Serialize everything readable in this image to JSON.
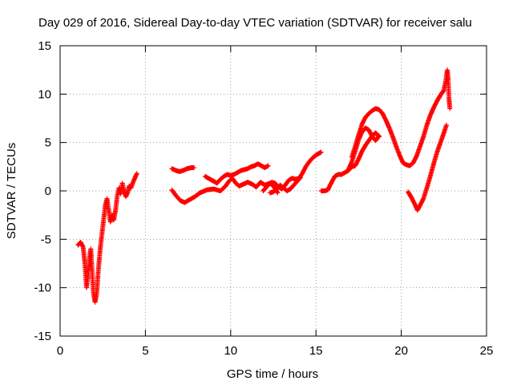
{
  "chart_data": {
    "type": "scatter",
    "title": "Day 029 of 2016, Sidereal Day-to-day VTEC variation (SDTVAR) for receiver salu",
    "xlabel": "GPS time / hours",
    "ylabel": "SDTVAR / TECUs",
    "xlim": [
      0,
      25
    ],
    "ylim": [
      -15,
      15
    ],
    "xticks": [
      0,
      5,
      10,
      15,
      20,
      25
    ],
    "yticks": [
      -15,
      -10,
      -5,
      0,
      5,
      10,
      15
    ],
    "x_tick_labels": [
      "0",
      "5",
      "10",
      "15",
      "20",
      "25"
    ],
    "y_tick_labels": [
      "-15",
      "-10",
      "-5",
      "0",
      "5",
      "10",
      "15"
    ],
    "grid": true,
    "marker": "+",
    "series_color": "#ff0000",
    "segments": [
      {
        "name": "arc-1",
        "points": [
          [
            1.05,
            -5.6
          ],
          [
            1.2,
            -5.3
          ],
          [
            1.35,
            -5.8
          ],
          [
            1.45,
            -7.5
          ],
          [
            1.55,
            -10.0
          ],
          [
            1.65,
            -8.5
          ],
          [
            1.75,
            -6.5
          ],
          [
            1.8,
            -6.0
          ],
          [
            1.85,
            -7.5
          ],
          [
            1.95,
            -10.5
          ],
          [
            2.05,
            -11.5
          ],
          [
            2.15,
            -10.5
          ],
          [
            2.25,
            -8.0
          ],
          [
            2.35,
            -6.0
          ],
          [
            2.45,
            -4.5
          ],
          [
            2.55,
            -3.0
          ],
          [
            2.65,
            -1.5
          ],
          [
            2.75,
            -0.8
          ],
          [
            2.85,
            -2.0
          ],
          [
            2.95,
            -3.2
          ],
          [
            3.05,
            -2.5
          ],
          [
            3.15,
            -3.0
          ],
          [
            3.25,
            -2.0
          ],
          [
            3.35,
            -0.5
          ],
          [
            3.45,
            0.3
          ],
          [
            3.55,
            -0.3
          ],
          [
            3.65,
            0.8
          ],
          [
            3.75,
            0.0
          ],
          [
            3.85,
            -0.6
          ],
          [
            3.95,
            -0.2
          ],
          [
            4.05,
            0.5
          ],
          [
            4.15,
            0.3
          ],
          [
            4.3,
            1.0
          ],
          [
            4.5,
            1.8
          ]
        ]
      },
      {
        "name": "arc-2",
        "points": [
          [
            6.55,
            2.3
          ],
          [
            6.8,
            2.1
          ],
          [
            7.0,
            2.0
          ],
          [
            7.2,
            2.1
          ],
          [
            7.45,
            2.3
          ],
          [
            7.7,
            2.4
          ],
          [
            7.85,
            2.4
          ]
        ]
      },
      {
        "name": "arc-3",
        "points": [
          [
            6.55,
            0.1
          ],
          [
            6.8,
            -0.5
          ],
          [
            7.05,
            -1.0
          ],
          [
            7.3,
            -1.2
          ],
          [
            7.6,
            -0.9
          ],
          [
            7.9,
            -0.6
          ],
          [
            8.2,
            -0.2
          ],
          [
            8.6,
            0.1
          ],
          [
            9.0,
            0.2
          ],
          [
            9.4,
            0.0
          ],
          [
            9.7,
            0.5
          ],
          [
            9.9,
            1.0
          ],
          [
            10.1,
            1.3
          ],
          [
            10.3,
            0.8
          ],
          [
            10.5,
            0.5
          ],
          [
            10.75,
            0.7
          ],
          [
            11.0,
            0.9
          ],
          [
            11.25,
            0.7
          ],
          [
            11.5,
            0.4
          ],
          [
            11.75,
            0.9
          ],
          [
            12.0,
            0.6
          ],
          [
            12.3,
            0.8
          ],
          [
            12.5,
            0.5
          ],
          [
            12.65,
            0.1
          ],
          [
            12.75,
            -0.2
          ]
        ]
      },
      {
        "name": "arc-4",
        "points": [
          [
            8.5,
            1.5
          ],
          [
            8.8,
            1.2
          ],
          [
            9.0,
            1.0
          ],
          [
            9.2,
            0.8
          ],
          [
            9.4,
            1.2
          ],
          [
            9.6,
            1.5
          ],
          [
            9.8,
            1.7
          ],
          [
            10.0,
            1.6
          ],
          [
            10.2,
            1.7
          ],
          [
            10.4,
            1.9
          ],
          [
            10.6,
            2.1
          ],
          [
            10.8,
            2.2
          ],
          [
            11.0,
            2.3
          ],
          [
            11.2,
            2.5
          ],
          [
            11.4,
            2.6
          ],
          [
            11.6,
            2.8
          ],
          [
            11.8,
            2.6
          ],
          [
            12.0,
            2.4
          ],
          [
            12.2,
            2.6
          ]
        ]
      },
      {
        "name": "arc-5",
        "points": [
          [
            11.9,
            0.0
          ],
          [
            12.0,
            0.2
          ],
          [
            12.2,
            0.6
          ],
          [
            12.4,
            0.9
          ],
          [
            12.6,
            0.8
          ],
          [
            12.8,
            0.4
          ],
          [
            13.0,
            0.2
          ],
          [
            13.2,
            0.6
          ],
          [
            13.4,
            1.1
          ],
          [
            13.6,
            1.3
          ],
          [
            13.8,
            1.2
          ],
          [
            14.0,
            1.3
          ],
          [
            14.2,
            1.8
          ],
          [
            14.4,
            2.5
          ],
          [
            14.6,
            3.0
          ],
          [
            14.8,
            3.4
          ],
          [
            15.0,
            3.7
          ],
          [
            15.2,
            3.9
          ],
          [
            15.3,
            4.0
          ]
        ]
      },
      {
        "name": "arc-6",
        "points": [
          [
            12.3,
            -0.2
          ],
          [
            12.5,
            -0.1
          ],
          [
            12.7,
            0.2
          ],
          [
            12.9,
            0.6
          ],
          [
            13.1,
            0.3
          ],
          [
            13.3,
            0.0
          ],
          [
            13.5,
            0.2
          ],
          [
            13.7,
            0.6
          ],
          [
            13.9,
            1.0
          ],
          [
            14.1,
            1.4
          ]
        ]
      },
      {
        "name": "arc-7",
        "points": [
          [
            15.3,
            0.0
          ],
          [
            15.5,
            0.0
          ],
          [
            15.7,
            0.1
          ],
          [
            15.8,
            0.5
          ],
          [
            15.95,
            1.0
          ],
          [
            16.1,
            1.5
          ],
          [
            16.3,
            1.7
          ],
          [
            16.5,
            1.7
          ],
          [
            16.7,
            1.9
          ],
          [
            16.9,
            2.1
          ],
          [
            17.1,
            2.5
          ],
          [
            17.3,
            2.6
          ],
          [
            17.5,
            3.3
          ],
          [
            17.7,
            4.1
          ],
          [
            17.9,
            4.7
          ],
          [
            18.1,
            5.2
          ],
          [
            18.3,
            5.7
          ],
          [
            18.5,
            6.0
          ],
          [
            18.7,
            5.6
          ]
        ]
      },
      {
        "name": "arc-8",
        "points": [
          [
            16.9,
            2.2
          ],
          [
            17.1,
            3.0
          ],
          [
            17.3,
            4.1
          ],
          [
            17.5,
            5.3
          ],
          [
            17.7,
            6.1
          ],
          [
            17.9,
            6.5
          ],
          [
            18.1,
            6.3
          ],
          [
            18.3,
            5.6
          ],
          [
            18.5,
            5.2
          ],
          [
            18.7,
            5.7
          ]
        ]
      },
      {
        "name": "arc-9",
        "points": [
          [
            17.1,
            3.5
          ],
          [
            17.3,
            4.6
          ],
          [
            17.5,
            5.8
          ],
          [
            17.7,
            6.9
          ],
          [
            17.9,
            7.6
          ],
          [
            18.1,
            8.0
          ],
          [
            18.3,
            8.3
          ],
          [
            18.5,
            8.5
          ],
          [
            18.7,
            8.4
          ],
          [
            18.9,
            8.0
          ],
          [
            19.1,
            7.3
          ],
          [
            19.3,
            6.5
          ],
          [
            19.5,
            5.6
          ],
          [
            19.7,
            4.6
          ],
          [
            19.9,
            3.7
          ],
          [
            20.1,
            2.9
          ],
          [
            20.3,
            2.7
          ],
          [
            20.5,
            2.6
          ],
          [
            20.7,
            2.9
          ],
          [
            20.9,
            3.6
          ],
          [
            21.1,
            4.6
          ],
          [
            21.3,
            5.6
          ],
          [
            21.5,
            6.8
          ],
          [
            21.7,
            7.8
          ],
          [
            21.9,
            8.6
          ],
          [
            22.1,
            9.3
          ],
          [
            22.3,
            9.9
          ],
          [
            22.5,
            10.4
          ],
          [
            22.6,
            11.3
          ],
          [
            22.7,
            12.5
          ],
          [
            22.75,
            11.5
          ],
          [
            22.8,
            9.5
          ],
          [
            22.85,
            8.5
          ]
        ]
      },
      {
        "name": "arc-10",
        "points": [
          [
            20.4,
            -0.1
          ],
          [
            20.6,
            -0.7
          ],
          [
            20.8,
            -1.4
          ],
          [
            20.95,
            -2.0
          ],
          [
            21.1,
            -1.5
          ],
          [
            21.3,
            -0.8
          ],
          [
            21.5,
            0.3
          ],
          [
            21.7,
            1.5
          ],
          [
            21.9,
            2.8
          ],
          [
            22.1,
            4.0
          ],
          [
            22.3,
            5.0
          ],
          [
            22.5,
            6.0
          ],
          [
            22.65,
            6.8
          ]
        ]
      }
    ]
  }
}
